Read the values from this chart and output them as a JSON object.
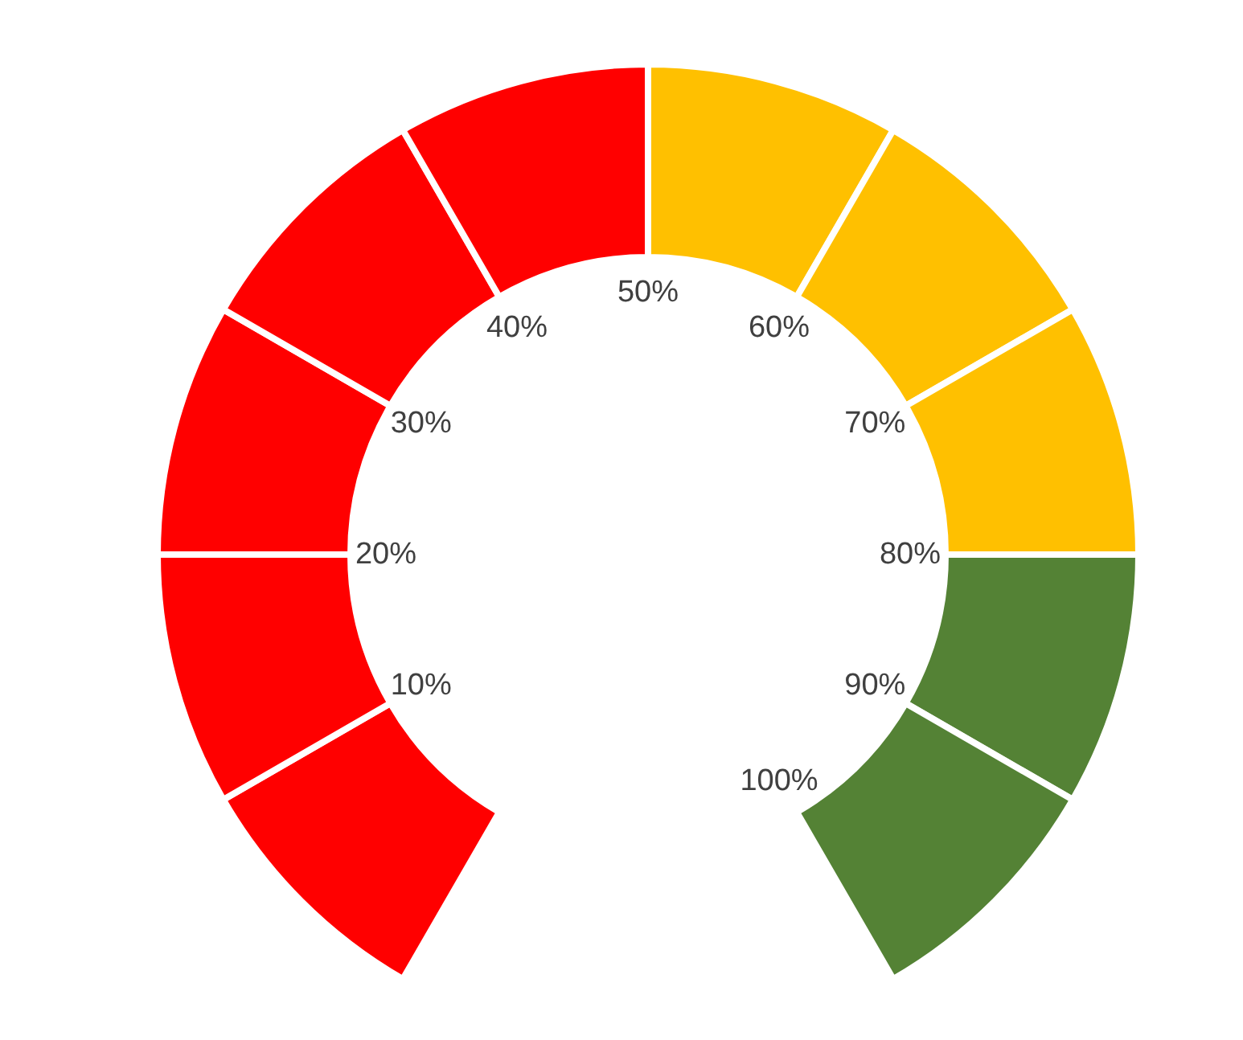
{
  "chart_data": {
    "type": "donut",
    "categories": [
      null,
      null,
      null,
      null,
      null,
      null,
      null,
      null,
      null,
      null
    ],
    "values": [
      10,
      10,
      10,
      10,
      10,
      10,
      10,
      10,
      10,
      10
    ],
    "colors": [
      "#ff0000",
      "#ff0000",
      "#ff0000",
      "#ff0000",
      "#ff0000",
      "#ffc000",
      "#ffc000",
      "#ffc000",
      "#548235",
      "#548235"
    ],
    "annotations": [
      "10%",
      "20%",
      "30%",
      "40%",
      "50%",
      "60%",
      "70%",
      "80%",
      "90%",
      "100%"
    ]
  }
}
